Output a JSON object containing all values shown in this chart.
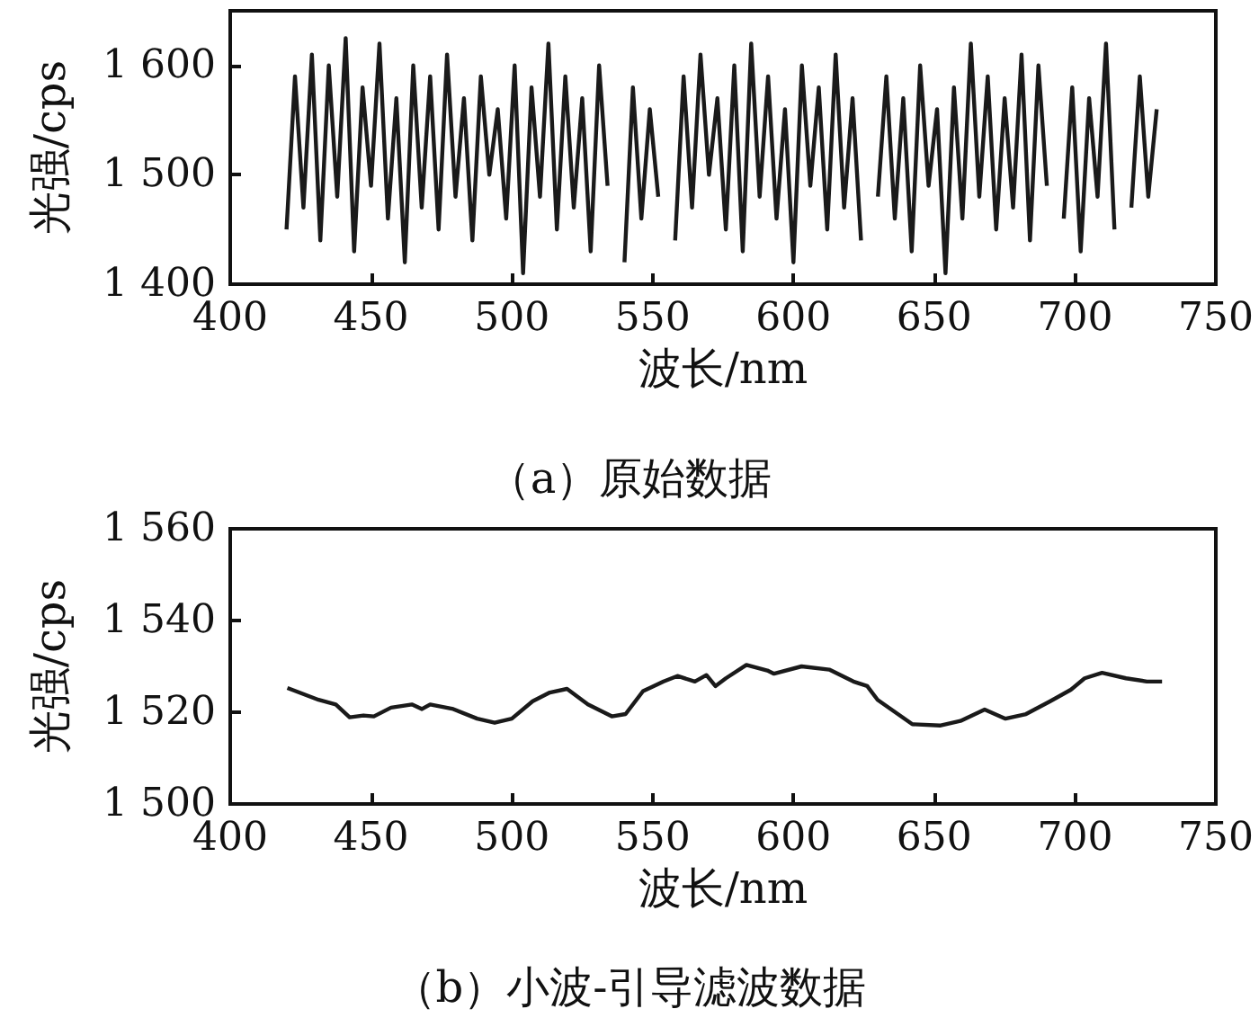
{
  "chart_data": [
    {
      "type": "line",
      "title": "（a）原始数据",
      "xlabel": "波长/nm",
      "ylabel": "光强/cps",
      "color": "#1a1a1a",
      "x": [
        420,
        423,
        426,
        429,
        432,
        435,
        438,
        441,
        444,
        447,
        450,
        453,
        456,
        459,
        462,
        465,
        468,
        471,
        474,
        477,
        480,
        483,
        486,
        489,
        492,
        495,
        498,
        501,
        504,
        507,
        510,
        513,
        516,
        519,
        522,
        525,
        528,
        531,
        534,
        537,
        540,
        543,
        546,
        549,
        552,
        555,
        558,
        561,
        564,
        567,
        570,
        573,
        576,
        579,
        582,
        585,
        588,
        591,
        594,
        597,
        600,
        603,
        606,
        609,
        612,
        615,
        618,
        621,
        624,
        627,
        630,
        633,
        636,
        639,
        642,
        645,
        648,
        651,
        654,
        657,
        660,
        663,
        666,
        669,
        672,
        675,
        678,
        681,
        684,
        687,
        690,
        693,
        696,
        699,
        702,
        705,
        708,
        711,
        714,
        717,
        720,
        723,
        726,
        729
      ],
      "values": [
        1450,
        1590,
        1470,
        1610,
        1440,
        1600,
        1480,
        1625,
        1430,
        1580,
        1490,
        1620,
        1460,
        1570,
        1420,
        1600,
        1470,
        1590,
        1450,
        1610,
        1480,
        1570,
        1440,
        1590,
        1500,
        1560,
        1460,
        1600,
        1410,
        1580,
        1480,
        1620,
        1450,
        1590,
        1470,
        1570,
        1430,
        1600,
        1490,
        null,
        1420,
        1580,
        1460,
        1560,
        1480,
        null,
        1440,
        1590,
        1470,
        1610,
        1500,
        1570,
        1450,
        1600,
        1430,
        1620,
        1480,
        1590,
        1460,
        1560,
        1420,
        1600,
        1490,
        1580,
        1450,
        1610,
        1470,
        1570,
        1440,
        null,
        1480,
        1590,
        1460,
        1570,
        1430,
        1600,
        1490,
        1560,
        1410,
        1580,
        1460,
        1620,
        1480,
        1590,
        1450,
        1570,
        1470,
        1610,
        1440,
        1600,
        1490,
        null,
        1460,
        1580,
        1430,
        1570,
        1480,
        1620,
        1450,
        null,
        1470,
        1590,
        1480,
        1560
      ],
      "xlim": [
        400,
        750
      ],
      "xticks": [
        400,
        450,
        500,
        550,
        600,
        650,
        700,
        750
      ],
      "ylim": [
        1400,
        1650
      ],
      "yticks": [
        {
          "value": 1400,
          "label": "1 400"
        },
        {
          "value": 1500,
          "label": "1 500"
        },
        {
          "value": 1600,
          "label": "1 600"
        }
      ]
    },
    {
      "type": "line",
      "title": "（b）小波-引导滤波数据",
      "xlabel": "波长/nm",
      "ylabel": "光强/cps",
      "color": "#1a1a1a",
      "x": [
        420.3,
        431.4,
        437.5,
        442.4,
        447.3,
        451,
        457.1,
        464.5,
        468.1,
        471,
        479.2,
        487.7,
        493.9,
        500,
        507.4,
        513.5,
        519.6,
        527,
        535.5,
        540.4,
        546.6,
        553.9,
        558.8,
        565,
        569.1,
        572.3,
        576,
        583.3,
        590.7,
        593.1,
        602.9,
        612.7,
        621.3,
        626.2,
        629.9,
        642.2,
        652,
        659.3,
        667.9,
        675.3,
        682.6,
        691.2,
        698.5,
        703.4,
        709.6,
        718.1,
        725.5,
        730.9
      ],
      "values": [
        1525.3,
        1522.7,
        1521.7,
        1518.9,
        1519.3,
        1519.1,
        1521,
        1521.7,
        1520.7,
        1521.7,
        1520.7,
        1518.6,
        1517.7,
        1518.6,
        1522.4,
        1524.3,
        1525.1,
        1521.7,
        1519.1,
        1519.6,
        1524.6,
        1526.7,
        1527.9,
        1526.7,
        1528.1,
        1525.7,
        1527.4,
        1530.3,
        1529.1,
        1528.4,
        1530,
        1529.3,
        1526.7,
        1525.7,
        1522.7,
        1517.4,
        1517.1,
        1518.1,
        1520.6,
        1518.6,
        1519.6,
        1522.4,
        1524.9,
        1527.4,
        1528.6,
        1527.4,
        1526.7,
        1526.7
      ],
      "xlim": [
        400,
        750
      ],
      "xticks": [
        400,
        450,
        500,
        550,
        600,
        650,
        700,
        750
      ],
      "ylim": [
        1500,
        1560
      ],
      "yticks": [
        {
          "value": 1500,
          "label": "1 500"
        },
        {
          "value": 1520,
          "label": "1 520"
        },
        {
          "value": 1540,
          "label": "1 540"
        },
        {
          "value": 1560,
          "label": "1 560"
        }
      ]
    }
  ]
}
